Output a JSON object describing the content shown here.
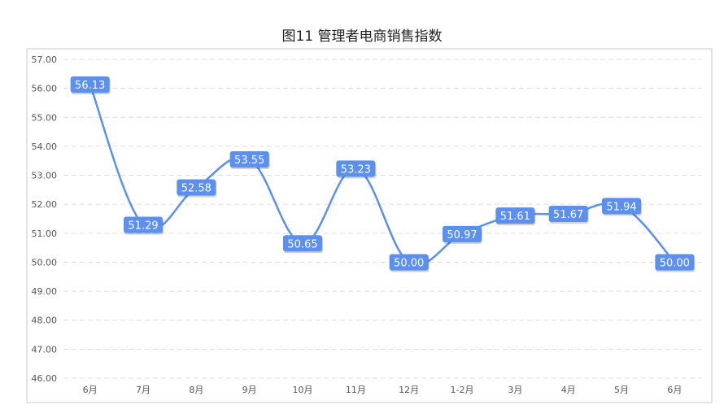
{
  "chart_data": {
    "type": "line",
    "title": "图11 管理者电商销售指数",
    "categories": [
      "6月",
      "7月",
      "8月",
      "9月",
      "10月",
      "11月",
      "12月",
      "1-2月",
      "3月",
      "4月",
      "5月",
      "6月"
    ],
    "values": [
      56.13,
      51.29,
      52.58,
      53.55,
      50.65,
      53.23,
      50.0,
      50.97,
      51.61,
      51.67,
      51.94,
      50.0
    ],
    "data_labels": [
      "56.13",
      "51.29",
      "52.58",
      "53.55",
      "50.65",
      "53.23",
      "50.00",
      "50.97",
      "51.61",
      "51.67",
      "51.94",
      "50.00"
    ],
    "y_ticks": [
      "46.00",
      "47.00",
      "48.00",
      "49.00",
      "50.00",
      "51.00",
      "52.00",
      "53.00",
      "54.00",
      "55.00",
      "56.00",
      "57.00"
    ],
    "ylim": [
      46,
      57
    ],
    "grid": true,
    "legend": "none",
    "line_color": "#5b8ff0",
    "label_bg_color": "#5b8ff0",
    "grid_color": "#dddddd",
    "border_color": "#c8c8c8"
  }
}
